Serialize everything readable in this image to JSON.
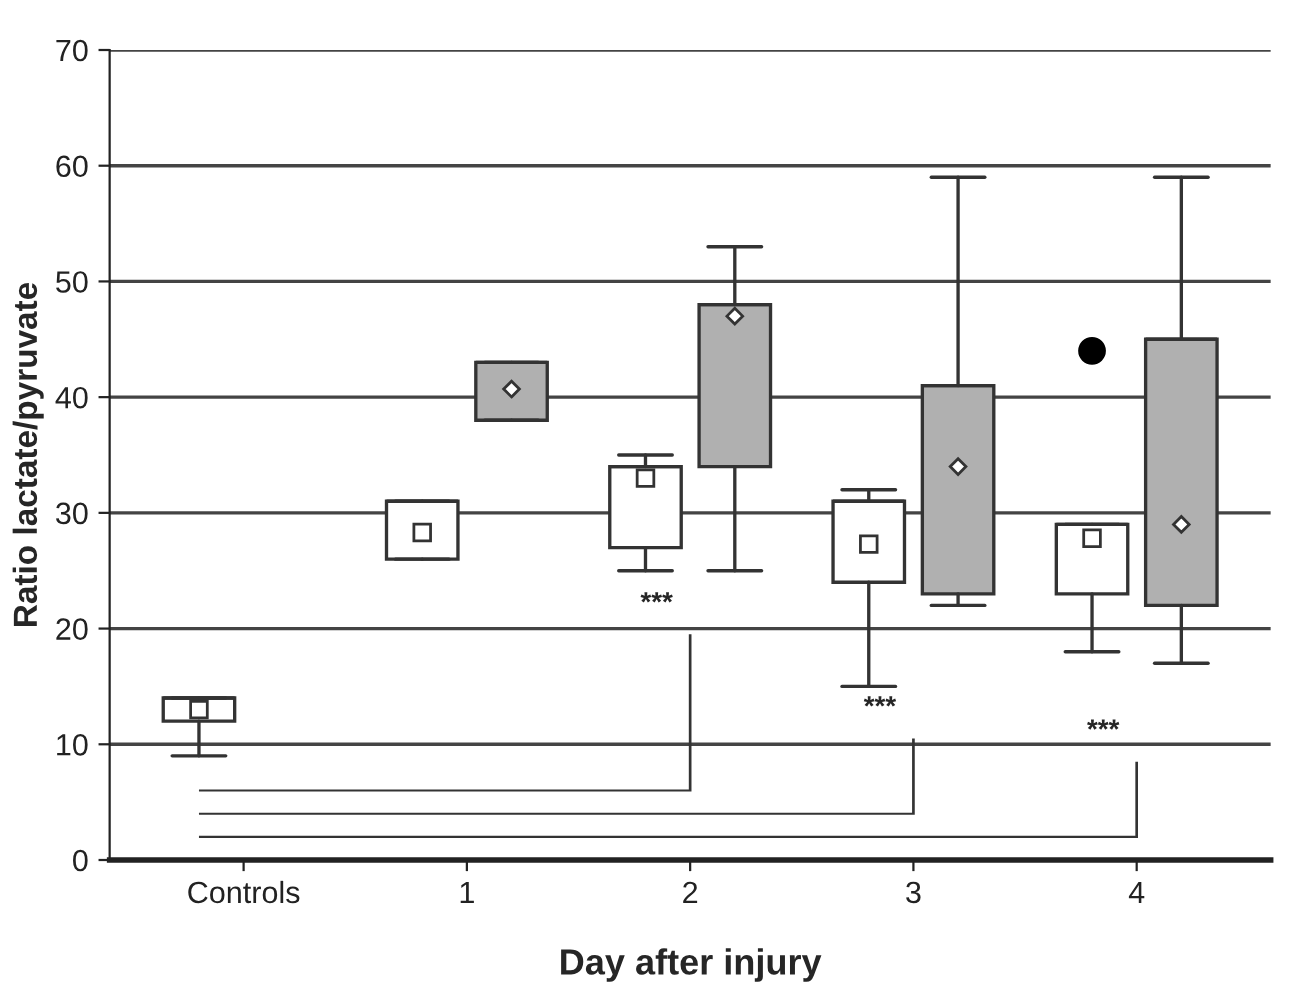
{
  "chart_data": {
    "type": "box",
    "xlabel": "Day after injury",
    "ylabel": "Ratio lactate/pyruvate",
    "categories": [
      "Controls",
      "1",
      "2",
      "3",
      "4"
    ],
    "series": [
      {
        "color": "#ffffff",
        "marker": "square",
        "boxes": [
          {
            "low": 9,
            "q1": 12,
            "median": 14,
            "q3": 14,
            "high": 14,
            "mean": 13
          },
          {
            "low": 26,
            "q1": 26,
            "median": 31,
            "q3": 31,
            "high": 31,
            "mean": 28.3
          },
          {
            "low": 25,
            "q1": 27,
            "median": 34,
            "q3": 34,
            "high": 35,
            "mean": 33
          },
          {
            "low": 15,
            "q1": 24,
            "median": 31,
            "q3": 31,
            "high": 32,
            "mean": 27.3
          },
          {
            "low": 18,
            "q1": 23,
            "median": 29,
            "q3": 29,
            "high": 29,
            "mean": 27.8,
            "outliers": [
              44
            ]
          }
        ]
      },
      {
        "color": "#b0b0b0",
        "marker": "diamond",
        "boxes": [
          null,
          {
            "low": 38,
            "q1": 38,
            "median": 43,
            "q3": 43,
            "high": 43,
            "mean": 40.7
          },
          {
            "low": 25,
            "q1": 34,
            "median": 48,
            "q3": 48,
            "high": 53,
            "mean": 47
          },
          {
            "low": 22,
            "q1": 23,
            "median": 41,
            "q3": 41,
            "high": 59,
            "mean": 34
          },
          {
            "low": 17,
            "q1": 22,
            "median": 45,
            "q3": 45,
            "high": 59,
            "mean": 29
          }
        ]
      }
    ],
    "ylim": [
      0,
      70
    ],
    "yticks": [
      0,
      10,
      20,
      30,
      40,
      50,
      60,
      70
    ],
    "grid": "y",
    "annotations": [
      "***",
      "***",
      "***"
    ]
  }
}
